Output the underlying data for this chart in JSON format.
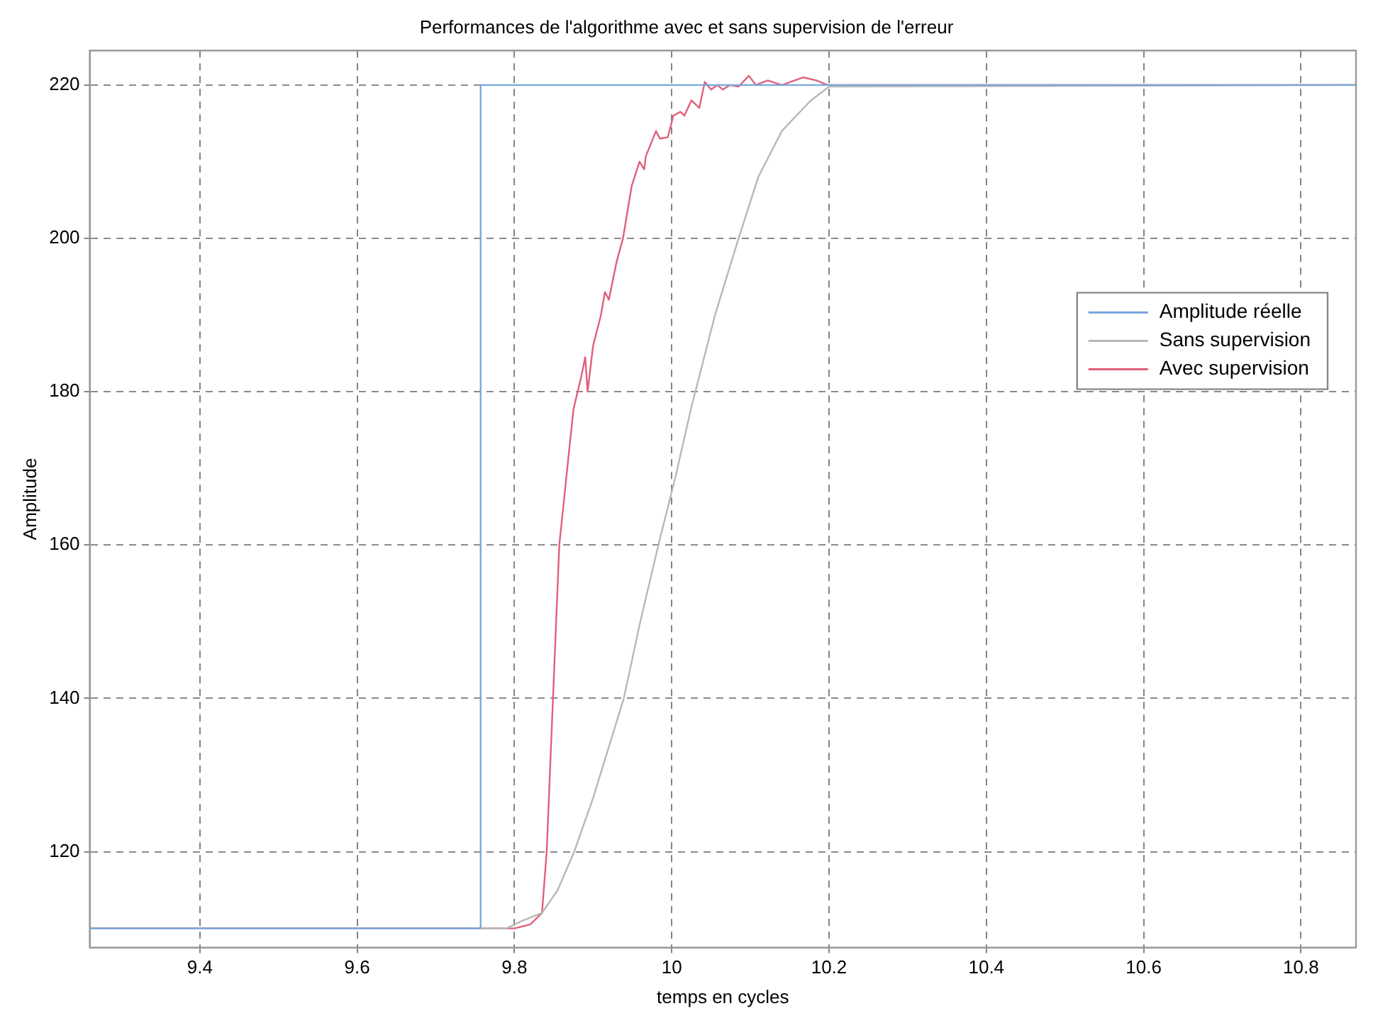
{
  "chart_data": {
    "type": "line",
    "title": "Performances de l'algorithme avec et sans supervision de l'erreur",
    "xlabel": "temps en cycles",
    "ylabel": "Amplitude",
    "xlim": [
      9.26,
      10.87
    ],
    "xticks": [
      9.4,
      9.6,
      9.8,
      10,
      10.2,
      10.4,
      10.6,
      10.8
    ],
    "ylim": [
      107.5,
      224.5
    ],
    "yticks": [
      120,
      140,
      160,
      180,
      200,
      220
    ],
    "grid": true,
    "legend": "right",
    "line_style": "solid",
    "marker": "none",
    "series": [
      {
        "name": "Amplitude réelle",
        "color": "#7aa6e0",
        "x": [
          9.26,
          9.757,
          9.757,
          10.87
        ],
        "values": [
          110,
          110,
          220,
          220
        ]
      },
      {
        "name": "Sans supervision",
        "color": "#b4bab4",
        "x": [
          9.26,
          9.79,
          9.81,
          9.835,
          9.855,
          9.876,
          9.9,
          9.939,
          9.96,
          9.983,
          10.005,
          10.025,
          10.055,
          10.085,
          10.11,
          10.14,
          10.176,
          10.2,
          10.87
        ],
        "values": [
          110,
          110,
          111,
          112,
          115,
          120,
          127,
          140,
          150,
          160,
          169,
          178,
          190,
          200,
          208,
          214,
          217.9,
          219.8,
          220
        ]
      },
      {
        "name": "Avec supervision",
        "color": "#e0607a",
        "x": [
          9.26,
          9.8,
          9.82,
          9.835,
          9.841,
          9.849,
          9.857,
          9.875,
          9.885,
          9.89,
          9.893,
          9.9,
          9.91,
          9.915,
          9.92,
          9.93,
          9.938,
          9.949,
          9.959,
          9.965,
          9.967,
          9.98,
          9.985,
          9.995,
          10.002,
          10.011,
          10.016,
          10.025,
          10.035,
          10.042,
          10.05,
          10.058,
          10.065,
          10.074,
          10.085,
          10.098,
          10.107,
          10.122,
          10.14,
          10.167,
          10.184,
          10.198,
          10.87
        ],
        "values": [
          110,
          110,
          110.5,
          112,
          120,
          140,
          160,
          177.7,
          182,
          184.5,
          180,
          186,
          190,
          193,
          192,
          197,
          200,
          206.8,
          210,
          209,
          210.7,
          214,
          213,
          213.2,
          216,
          216.5,
          216,
          218,
          217,
          220.4,
          219.4,
          220,
          219.4,
          220,
          219.8,
          221.2,
          220,
          220.6,
          220,
          221,
          220.6,
          220,
          220
        ]
      }
    ]
  }
}
